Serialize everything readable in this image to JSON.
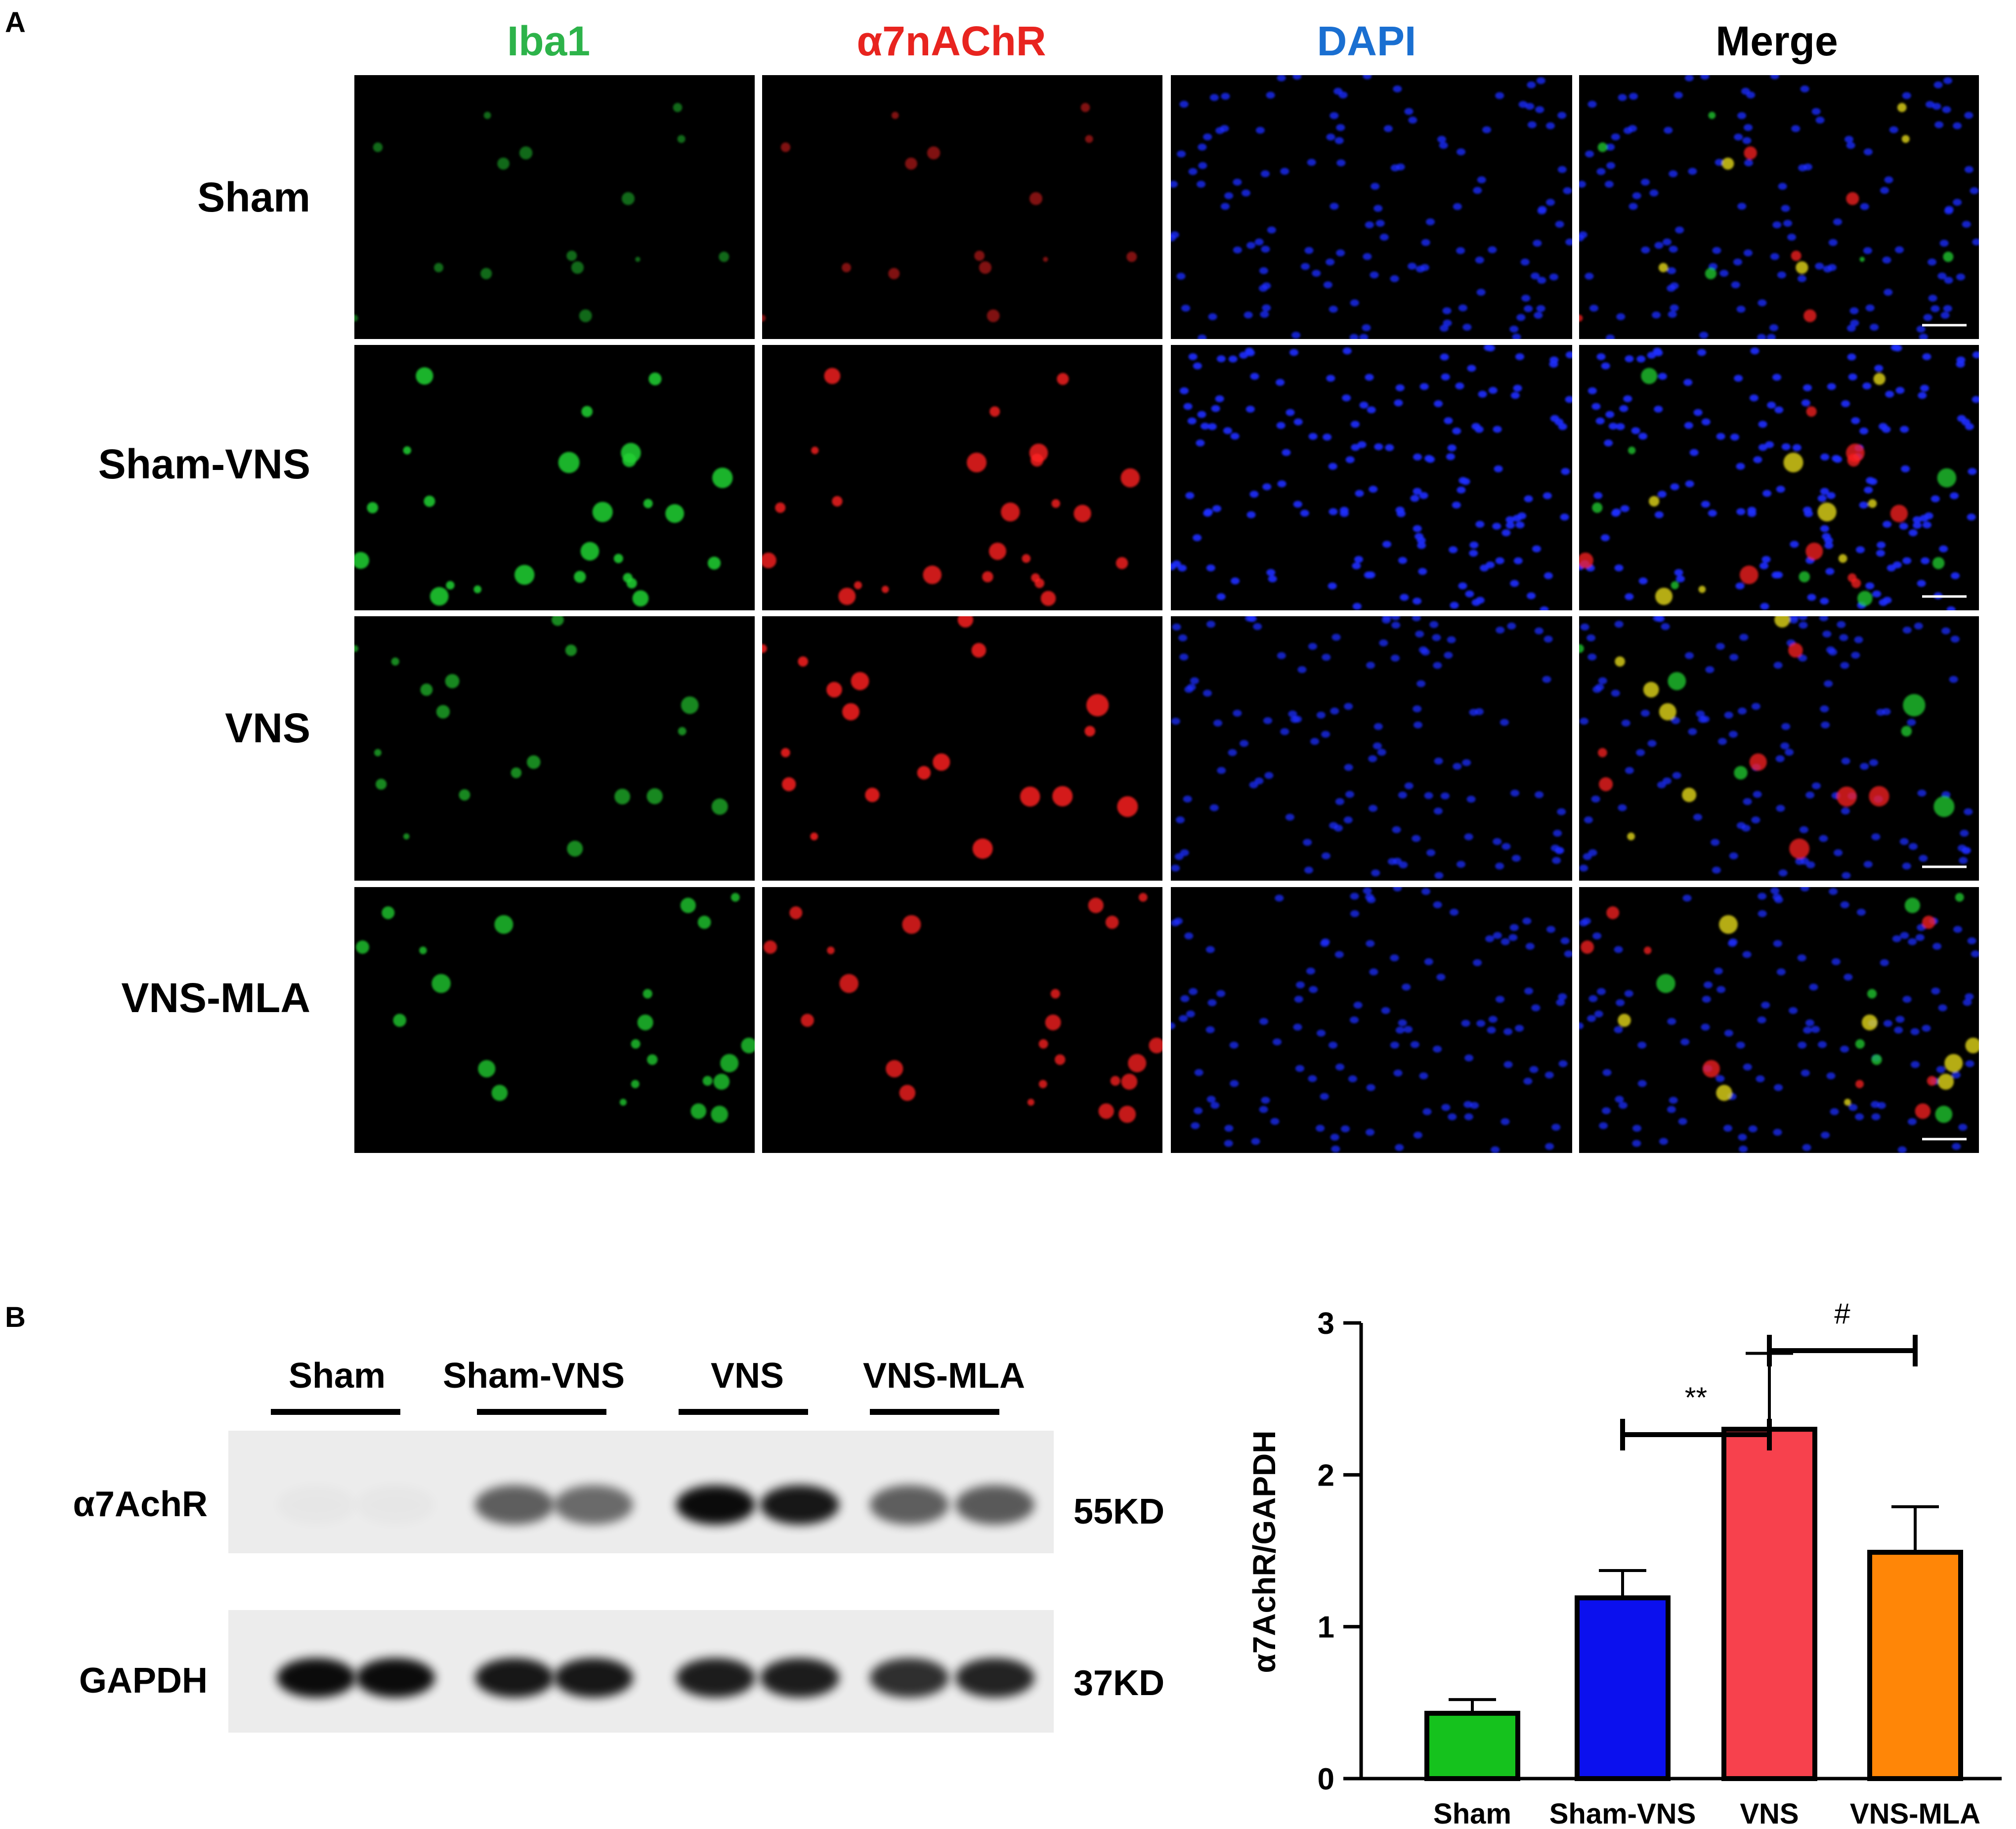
{
  "panel_a": {
    "letter": "A",
    "columns": [
      {
        "label": "Iba1",
        "color": "#2db34a"
      },
      {
        "label": "α7nAChR",
        "color": "#e8241f"
      },
      {
        "label": "DAPI",
        "color": "#1a6fd1"
      },
      {
        "label": "Merge",
        "color": "#000000"
      }
    ],
    "rows": [
      "Sham",
      "Sham-VNS",
      "VNS",
      "VNS-MLA"
    ],
    "channel_colors": {
      "green": "#22d132",
      "red": "#ff2020",
      "blue": "#1c2eff",
      "yellow": "#f2e61a"
    },
    "intensity": {
      "Sham": {
        "green": 0.25,
        "red": 0.25,
        "blue": 0.6
      },
      "Sham-VNS": {
        "green": 0.85,
        "red": 0.75,
        "blue": 0.9
      },
      "VNS": {
        "green": 0.5,
        "red": 0.8,
        "blue": 0.5
      },
      "VNS-MLA": {
        "green": 0.7,
        "red": 0.7,
        "blue": 0.5
      }
    }
  },
  "panel_b": {
    "letter": "B",
    "blot": {
      "groups": [
        "Sham",
        "Sham-VNS",
        "VNS",
        "VNS-MLA"
      ],
      "proteins": [
        {
          "name": "α7AchR",
          "size": "55KD",
          "band_intensity": [
            0.02,
            0.02,
            0.6,
            0.55,
            0.95,
            0.9,
            0.6,
            0.62
          ]
        },
        {
          "name": "GAPDH",
          "size": "37KD",
          "band_intensity": [
            0.95,
            0.95,
            0.9,
            0.9,
            0.88,
            0.88,
            0.8,
            0.85
          ]
        }
      ]
    }
  },
  "chart_data": {
    "type": "bar",
    "categories": [
      "Sham",
      "Sham-VNS",
      "VNS",
      "VNS-MLA"
    ],
    "values": [
      0.43,
      1.19,
      2.3,
      1.49
    ],
    "error_plus": [
      0.09,
      0.18,
      0.5,
      0.3
    ],
    "colors": [
      "#15c21d",
      "#0b10ee",
      "#f7414d",
      "#ff8607"
    ],
    "title": "",
    "xlabel": "",
    "ylabel": "α7AchR/GAPDH",
    "ylim": [
      0,
      3
    ],
    "yticks": [
      0,
      1,
      2,
      3
    ],
    "grid": false,
    "significance": [
      {
        "from": "Sham-VNS",
        "to": "VNS",
        "label": "**"
      },
      {
        "from": "VNS",
        "to": "VNS-MLA",
        "label": "#"
      }
    ]
  }
}
